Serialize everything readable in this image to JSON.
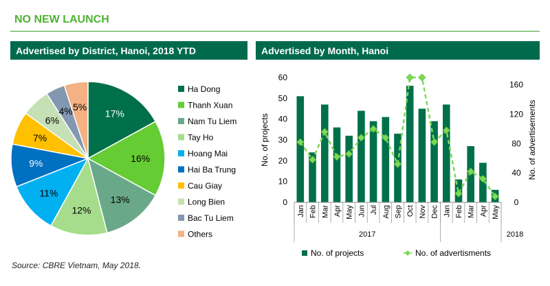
{
  "header": {
    "title": "NO NEW LAUNCH"
  },
  "left_panel": {
    "heading": "Advertised by District, Hanoi, 2018 YTD"
  },
  "right_panel": {
    "heading": "Advertised by Month, Hanoi"
  },
  "footer": {
    "source": "Source: CBRE Vietnam, May 2018."
  },
  "colors": {
    "brand_dark": "#006a4d",
    "brand_green": "#4fb232",
    "bar": "#00704a",
    "line": "#7ed957"
  },
  "chart_data": [
    {
      "type": "pie",
      "title": "Advertised by District, Hanoi, 2018 YTD",
      "legend_position": "right",
      "slices": [
        {
          "name": "Ha Dong",
          "value": 17,
          "label": "17%",
          "color": "#00704a"
        },
        {
          "name": "Thanh Xuan",
          "value": 16,
          "label": "16%",
          "color": "#66cc33"
        },
        {
          "name": "Nam Tu Liem",
          "value": 13,
          "label": "13%",
          "color": "#6aa88a"
        },
        {
          "name": "Tay Ho",
          "value": 12,
          "label": "12%",
          "color": "#a6dd8c"
        },
        {
          "name": "Hoang Mai",
          "value": 11,
          "label": "11%",
          "color": "#00b0f0"
        },
        {
          "name": "Hai Ba Trung",
          "value": 9,
          "label": "9%",
          "color": "#0070c0"
        },
        {
          "name": "Cau Giay",
          "value": 7,
          "label": "7%",
          "color": "#ffc000"
        },
        {
          "name": "Long Bien",
          "value": 6,
          "label": "6%",
          "color": "#c5e0b4"
        },
        {
          "name": "Bac Tu Liem",
          "value": 4,
          "label": "4%",
          "color": "#8497b0"
        },
        {
          "name": "Others",
          "value": 5,
          "label": "5%",
          "color": "#f4b183"
        }
      ]
    },
    {
      "type": "bar",
      "title": "Advertised by Month, Hanoi",
      "categories": [
        "Jan",
        "Feb",
        "Mar",
        "Apr",
        "May",
        "Jun",
        "Jul",
        "Aug",
        "Sep",
        "Oct",
        "Nov",
        "Dec",
        "Jan",
        "Feb",
        "Mar",
        "Apr",
        "May"
      ],
      "groups": [
        {
          "label": "2017",
          "count": 12
        },
        {
          "label": "2018",
          "count": 5
        }
      ],
      "ylabel": "No. of projects",
      "ylim": [
        0,
        60
      ],
      "yticks": [
        0,
        10,
        20,
        30,
        40,
        50,
        60
      ],
      "y2label": "No. of advertisements",
      "y2lim": [
        0,
        170
      ],
      "y2ticks": [
        0,
        40,
        80,
        120,
        160
      ],
      "legend_position": "bottom",
      "series": [
        {
          "name": "No. of projects",
          "kind": "bar",
          "axis": "left",
          "values": [
            51,
            24,
            47,
            36,
            32,
            44,
            39,
            41,
            33,
            56,
            45,
            39,
            47,
            11,
            27,
            19,
            6
          ]
        },
        {
          "name": "No. of advertisments",
          "kind": "line",
          "axis": "right",
          "values": [
            82,
            58,
            96,
            62,
            66,
            88,
            100,
            88,
            52,
            170,
            170,
            82,
            98,
            12,
            42,
            32,
            8
          ]
        }
      ]
    }
  ]
}
